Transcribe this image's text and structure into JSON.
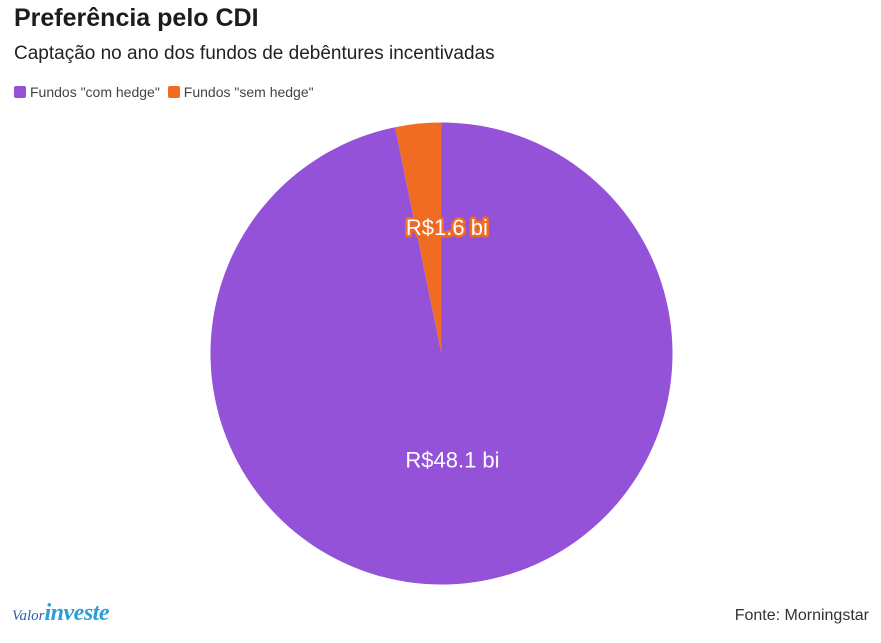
{
  "header": {
    "title": "Preferência pelo CDI",
    "subtitle": "Captação no ano dos fundos de debêntures incentivadas"
  },
  "footer": {
    "logo_valor": "Valor",
    "logo_investe": "investe",
    "source": "Fonte: Morningstar"
  },
  "colors": {
    "com_hedge": "#9352d8",
    "sem_hedge": "#f06c22"
  },
  "chart_data": {
    "type": "pie",
    "title": "Preferência pelo CDI",
    "subtitle": "Captação no ano dos fundos de debêntures incentivadas",
    "legend_position": "top-left",
    "series": [
      {
        "name": "Fundos \"com hedge\"",
        "value": 48.1,
        "label": "R$48.1 bi",
        "color": "#9352d8"
      },
      {
        "name": "Fundos \"sem hedge\"",
        "value": 1.6,
        "label": "R$1.6 bi",
        "color": "#f06c22"
      }
    ],
    "unit": "R$ bi",
    "source": "Fonte: Morningstar"
  }
}
